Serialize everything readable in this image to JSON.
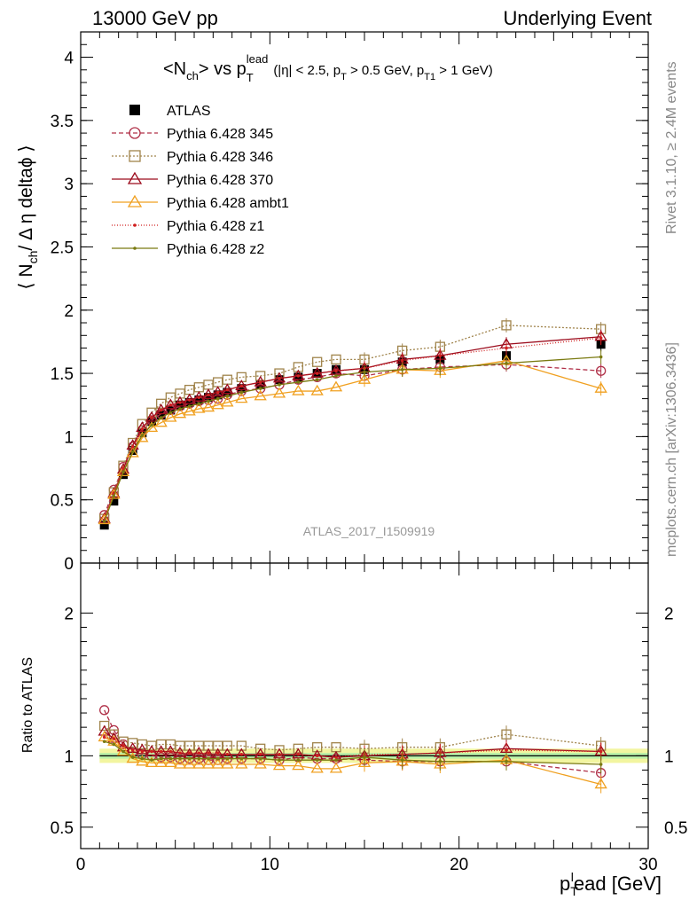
{
  "header": {
    "left": "13000 GeV pp",
    "right": "Underlying Event"
  },
  "side_labels": {
    "rivet": "Rivet 3.1.10, ≥ 2.4M events",
    "mcplots": "mcplots.cern.ch [arXiv:1306.3436]"
  },
  "chart_data": [
    {
      "type": "scatter",
      "title": "<Nch> vs pTlead (|η| < 2.5, pT > 0.5 GeV, pT1 > 1 GeV)",
      "title_parts": {
        "a": "<N",
        "a_sub": "ch",
        "b": "> vs p",
        "b_sub": "T",
        "b_sup": "lead",
        "c": "(|η| < 2.5, p",
        "c_sub": "T",
        "d": " > 0.5 GeV, p",
        "d_sub": "T1",
        "e": " > 1 GeV)"
      },
      "ylabel": "⟨ Nch/ Δη deltaϕ ⟩",
      "ylabel_parts": {
        "pre": "⟨ N",
        "sub": "ch",
        "post": "/ Δ η deltaϕ ⟩"
      },
      "watermark": "ATLAS_2017_I1509919",
      "xlim": [
        0,
        30
      ],
      "ylim": [
        0,
        4.2
      ],
      "x_ticks": [
        0,
        10,
        20,
        30
      ],
      "y_ticks": [
        0,
        0.5,
        1,
        1.5,
        2,
        2.5,
        3,
        3.5,
        4
      ],
      "y_tick_labels": [
        "0",
        "0.5",
        "1",
        "1.5",
        "2",
        "2.5",
        "3",
        "3.5",
        "4"
      ],
      "legend_position": "top-left",
      "x": [
        1.25,
        1.75,
        2.25,
        2.75,
        3.25,
        3.75,
        4.25,
        4.75,
        5.25,
        5.75,
        6.25,
        6.75,
        7.25,
        7.75,
        8.5,
        9.5,
        10.5,
        11.5,
        12.5,
        13.5,
        15,
        17,
        19,
        22.5,
        27.5
      ],
      "series": [
        {
          "name": "ATLAS",
          "marker": "filled-square",
          "color": "#000000",
          "dash": "none",
          "values": [
            0.3,
            0.49,
            0.7,
            0.89,
            1.03,
            1.12,
            1.17,
            1.21,
            1.25,
            1.27,
            1.29,
            1.31,
            1.33,
            1.35,
            1.38,
            1.41,
            1.45,
            1.47,
            1.5,
            1.53,
            1.53,
            1.59,
            1.61,
            1.64,
            1.73
          ]
        },
        {
          "name": "Pythia 6.428 345",
          "marker": "open-circle",
          "color": "#b03048",
          "dash": "5,3",
          "values": [
            0.38,
            0.58,
            0.76,
            0.92,
            1.05,
            1.13,
            1.18,
            1.21,
            1.24,
            1.26,
            1.28,
            1.29,
            1.3,
            1.33,
            1.36,
            1.38,
            1.41,
            1.45,
            1.47,
            1.5,
            1.48,
            1.53,
            1.55,
            1.57,
            1.52
          ]
        },
        {
          "name": "Pythia 6.428 346",
          "marker": "open-square",
          "color": "#a0844c",
          "dash": "2,2",
          "values": [
            0.35,
            0.56,
            0.77,
            0.95,
            1.1,
            1.19,
            1.26,
            1.31,
            1.34,
            1.37,
            1.39,
            1.41,
            1.43,
            1.45,
            1.47,
            1.48,
            1.5,
            1.55,
            1.59,
            1.61,
            1.61,
            1.68,
            1.71,
            1.88,
            1.85
          ]
        },
        {
          "name": "Pythia 6.428 370",
          "marker": "open-triangle",
          "color": "#9c0b1c",
          "dash": "none",
          "values": [
            0.35,
            0.55,
            0.74,
            0.93,
            1.07,
            1.15,
            1.21,
            1.25,
            1.27,
            1.29,
            1.31,
            1.33,
            1.35,
            1.37,
            1.4,
            1.43,
            1.46,
            1.48,
            1.5,
            1.52,
            1.54,
            1.61,
            1.64,
            1.73,
            1.79
          ]
        },
        {
          "name": "Pythia 6.428 ambt1",
          "marker": "open-triangle",
          "color": "#f0a020",
          "dash": "none",
          "values": [
            0.34,
            0.54,
            0.72,
            0.87,
            0.99,
            1.07,
            1.11,
            1.15,
            1.18,
            1.2,
            1.22,
            1.23,
            1.25,
            1.27,
            1.3,
            1.32,
            1.34,
            1.36,
            1.36,
            1.39,
            1.45,
            1.53,
            1.52,
            1.6,
            1.38
          ]
        },
        {
          "name": "Pythia 6.428 z1",
          "marker": "dot",
          "color": "#d02020",
          "dash": "1,2",
          "values": [
            0.34,
            0.55,
            0.75,
            0.92,
            1.06,
            1.15,
            1.21,
            1.25,
            1.27,
            1.29,
            1.31,
            1.33,
            1.35,
            1.37,
            1.4,
            1.43,
            1.46,
            1.48,
            1.5,
            1.52,
            1.54,
            1.6,
            1.64,
            1.7,
            1.78
          ]
        },
        {
          "name": "Pythia 6.428 z2",
          "marker": "dot",
          "color": "#7a7a10",
          "dash": "none",
          "values": [
            0.33,
            0.53,
            0.72,
            0.88,
            1.01,
            1.09,
            1.15,
            1.19,
            1.22,
            1.24,
            1.26,
            1.28,
            1.3,
            1.32,
            1.35,
            1.38,
            1.41,
            1.43,
            1.45,
            1.48,
            1.51,
            1.53,
            1.54,
            1.58,
            1.63
          ]
        }
      ]
    },
    {
      "type": "scatter",
      "ylabel": "Ratio to ATLAS",
      "xlabel": "pTlead [GeV]",
      "xlabel_parts": {
        "pre": "p",
        "sub": "T",
        "sup": "l",
        "post": "ead [GeV]"
      },
      "xlim": [
        0,
        30
      ],
      "ylim": [
        0.35,
        2.35
      ],
      "x_ticks": [
        0,
        10,
        20,
        30
      ],
      "x_tick_labels": [
        "0",
        "10",
        "20",
        "30"
      ],
      "y_ticks": [
        0.5,
        1,
        2
      ],
      "y_tick_labels": [
        "0.5",
        "1",
        "2"
      ],
      "reference_band": {
        "inner": [
          0.98,
          1.02
        ],
        "outer": [
          0.95,
          1.05
        ]
      },
      "x": [
        1.25,
        1.75,
        2.25,
        2.75,
        3.25,
        3.75,
        4.25,
        4.75,
        5.25,
        5.75,
        6.25,
        6.75,
        7.25,
        7.75,
        8.5,
        9.5,
        10.5,
        11.5,
        12.5,
        13.5,
        15,
        17,
        19,
        22.5,
        27.5
      ],
      "series": [
        {
          "name": "Pythia 6.428 345",
          "values": [
            1.32,
            1.18,
            1.08,
            1.03,
            1.01,
            1.0,
            0.99,
            0.99,
            0.98,
            0.98,
            0.98,
            0.97,
            0.97,
            0.98,
            0.98,
            0.98,
            0.97,
            0.99,
            0.98,
            0.98,
            0.97,
            0.96,
            0.96,
            0.96,
            0.88
          ]
        },
        {
          "name": "Pythia 6.428 346",
          "values": [
            1.21,
            1.15,
            1.1,
            1.09,
            1.08,
            1.07,
            1.08,
            1.08,
            1.07,
            1.07,
            1.07,
            1.07,
            1.07,
            1.07,
            1.07,
            1.05,
            1.04,
            1.05,
            1.06,
            1.06,
            1.05,
            1.06,
            1.06,
            1.15,
            1.07
          ]
        },
        {
          "name": "Pythia 6.428 370",
          "values": [
            1.17,
            1.12,
            1.06,
            1.05,
            1.04,
            1.03,
            1.03,
            1.03,
            1.02,
            1.01,
            1.02,
            1.01,
            1.01,
            1.01,
            1.01,
            1.01,
            1.01,
            1.01,
            1.0,
            0.99,
            1.0,
            1.01,
            1.02,
            1.05,
            1.03
          ]
        },
        {
          "name": "Pythia 6.428 ambt1",
          "values": [
            1.13,
            1.1,
            1.03,
            0.98,
            0.96,
            0.95,
            0.95,
            0.95,
            0.94,
            0.94,
            0.94,
            0.94,
            0.94,
            0.94,
            0.94,
            0.94,
            0.93,
            0.93,
            0.91,
            0.91,
            0.95,
            0.96,
            0.94,
            0.97,
            0.8
          ]
        },
        {
          "name": "Pythia 6.428 z1",
          "values": [
            1.13,
            1.12,
            1.07,
            1.04,
            1.03,
            1.03,
            1.03,
            1.03,
            1.02,
            1.02,
            1.02,
            1.02,
            1.02,
            1.01,
            1.01,
            1.01,
            1.01,
            1.01,
            1.0,
            0.99,
            1.01,
            1.01,
            1.02,
            1.04,
            1.03
          ]
        },
        {
          "name": "Pythia 6.428 z2",
          "values": [
            1.1,
            1.08,
            1.03,
            0.99,
            0.98,
            0.97,
            0.98,
            0.98,
            0.98,
            0.98,
            0.98,
            0.98,
            0.98,
            0.98,
            0.98,
            0.98,
            0.97,
            0.97,
            0.97,
            0.97,
            0.99,
            0.97,
            0.96,
            0.96,
            0.94
          ]
        }
      ]
    }
  ]
}
